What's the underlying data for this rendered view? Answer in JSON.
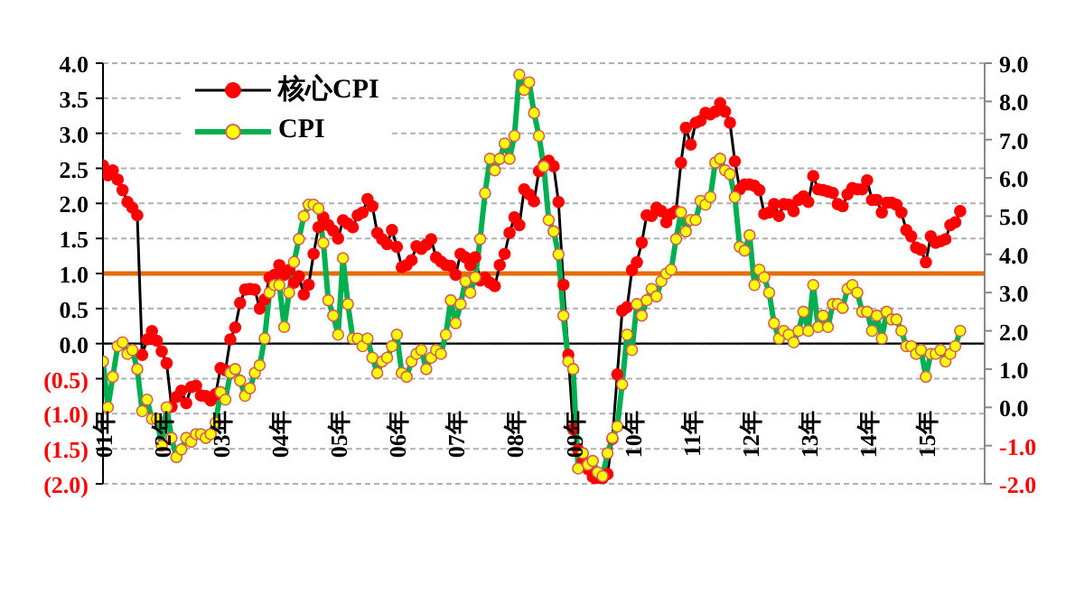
{
  "chart_data": {
    "type": "line",
    "x": [
      "2001-01",
      "2001-02",
      "2001-03",
      "2001-04",
      "2001-05",
      "2001-06",
      "2001-07",
      "2001-08",
      "2001-09",
      "2001-10",
      "2001-11",
      "2001-12",
      "2002-01",
      "2002-02",
      "2002-03",
      "2002-04",
      "2002-05",
      "2002-06",
      "2002-07",
      "2002-08",
      "2002-09",
      "2002-10",
      "2002-11",
      "2002-12",
      "2003-01",
      "2003-02",
      "2003-03",
      "2003-04",
      "2003-05",
      "2003-06",
      "2003-07",
      "2003-08",
      "2003-09",
      "2003-10",
      "2003-11",
      "2003-12",
      "2004-01",
      "2004-02",
      "2004-03",
      "2004-04",
      "2004-05",
      "2004-06",
      "2004-07",
      "2004-08",
      "2004-09",
      "2004-10",
      "2004-11",
      "2004-12",
      "2005-01",
      "2005-02",
      "2005-03",
      "2005-04",
      "2005-05",
      "2005-06",
      "2005-07",
      "2005-08",
      "2005-09",
      "2005-10",
      "2005-11",
      "2005-12",
      "2006-01",
      "2006-02",
      "2006-03",
      "2006-04",
      "2006-05",
      "2006-06",
      "2006-07",
      "2006-08",
      "2006-09",
      "2006-10",
      "2006-11",
      "2006-12",
      "2007-01",
      "2007-02",
      "2007-03",
      "2007-04",
      "2007-05",
      "2007-06",
      "2007-07",
      "2007-08",
      "2007-09",
      "2007-10",
      "2007-11",
      "2007-12",
      "2008-01",
      "2008-02",
      "2008-03",
      "2008-04",
      "2008-05",
      "2008-06",
      "2008-07",
      "2008-08",
      "2008-09",
      "2008-10",
      "2008-11",
      "2008-12",
      "2009-01",
      "2009-02",
      "2009-03",
      "2009-04",
      "2009-05",
      "2009-06",
      "2009-07",
      "2009-08",
      "2009-09",
      "2009-10",
      "2009-11",
      "2009-12",
      "2010-01",
      "2010-02",
      "2010-03",
      "2010-04",
      "2010-05",
      "2010-06",
      "2010-07",
      "2010-08",
      "2010-09",
      "2010-10",
      "2010-11",
      "2010-12",
      "2011-01",
      "2011-02",
      "2011-03",
      "2011-04",
      "2011-05",
      "2011-06",
      "2011-07",
      "2011-08",
      "2011-09",
      "2011-10",
      "2011-11",
      "2011-12",
      "2012-01",
      "2012-02",
      "2012-03",
      "2012-04",
      "2012-05",
      "2012-06",
      "2012-07",
      "2012-08",
      "2012-09",
      "2012-10",
      "2012-11",
      "2012-12",
      "2013-01",
      "2013-02",
      "2013-03",
      "2013-04",
      "2013-05",
      "2013-06",
      "2013-07",
      "2013-08",
      "2013-09",
      "2013-10",
      "2013-11",
      "2013-12",
      "2014-01",
      "2014-02",
      "2014-03",
      "2014-04",
      "2014-05",
      "2014-06",
      "2014-07",
      "2014-08",
      "2014-09",
      "2014-10",
      "2014-11",
      "2014-12",
      "2015-01",
      "2015-02",
      "2015-03",
      "2015-04",
      "2015-05",
      "2015-06",
      "2015-07",
      "2015-08"
    ],
    "series": [
      {
        "name": "核心CPI",
        "color": "#ff0000",
        "values": [
          2.54,
          2.4,
          2.47,
          2.34,
          2.19,
          2.02,
          1.94,
          1.83,
          -0.16,
          0.06,
          0.18,
          0.04,
          -0.11,
          -0.28,
          -0.9,
          -0.76,
          -0.67,
          -0.85,
          -0.62,
          -0.6,
          -0.74,
          -0.75,
          -0.81,
          -0.72,
          -0.35,
          -0.38,
          0.06,
          0.23,
          0.58,
          0.77,
          0.78,
          0.77,
          0.5,
          0.63,
          0.94,
          0.98,
          1.12,
          0.98,
          1.05,
          0.87,
          0.96,
          0.7,
          0.84,
          1.28,
          1.66,
          1.8,
          1.69,
          1.61,
          1.5,
          1.76,
          1.71,
          1.66,
          1.83,
          1.87,
          2.06,
          1.96,
          1.58,
          1.49,
          1.42,
          1.62,
          1.38,
          1.09,
          1.12,
          1.19,
          1.39,
          1.35,
          1.41,
          1.49,
          1.23,
          1.17,
          1.12,
          1.11,
          0.98,
          1.28,
          1.23,
          1.12,
          1.23,
          0.9,
          0.94,
          0.87,
          0.82,
          1.12,
          1.28,
          1.58,
          1.8,
          1.69,
          2.2,
          2.13,
          2.03,
          2.46,
          2.55,
          2.61,
          2.53,
          2.02,
          0.84,
          -0.16,
          -1.22,
          -1.51,
          -1.68,
          -1.79,
          -1.9,
          -1.98,
          -1.92,
          -1.86,
          -1.36,
          -0.44,
          0.47,
          0.52,
          1.05,
          1.16,
          1.44,
          1.83,
          1.82,
          1.94,
          1.89,
          1.73,
          1.85,
          1.89,
          2.58,
          3.08,
          2.84,
          3.15,
          3.18,
          3.29,
          3.27,
          3.31,
          3.43,
          3.31,
          3.15,
          2.6,
          2.2,
          2.27,
          2.27,
          2.25,
          2.19,
          1.85,
          1.87,
          1.99,
          1.82,
          1.99,
          1.98,
          1.89,
          2.05,
          2.1,
          2.02,
          2.39,
          2.2,
          2.19,
          2.17,
          2.15,
          1.99,
          1.96,
          2.13,
          2.22,
          2.2,
          2.2,
          2.33,
          2.05,
          2.05,
          1.87,
          2.01,
          2.01,
          1.98,
          1.87,
          1.62,
          1.53,
          1.37,
          1.34,
          1.16,
          1.53,
          1.44,
          1.46,
          1.49,
          1.69,
          1.73,
          1.89
        ]
      },
      {
        "name": "CPI",
        "color": "#00b050",
        "axis": "y2",
        "values": [
          1.2,
          0.0,
          0.8,
          1.6,
          1.7,
          1.4,
          1.5,
          1.0,
          -0.1,
          0.2,
          -0.3,
          -0.3,
          -1.0,
          0.0,
          -0.8,
          -1.3,
          -1.1,
          -0.8,
          -0.9,
          -0.7,
          -0.7,
          -0.8,
          -0.7,
          -0.4,
          0.4,
          0.2,
          0.9,
          1.0,
          0.7,
          0.3,
          0.5,
          0.9,
          1.1,
          1.8,
          3.0,
          3.2,
          3.2,
          2.1,
          3.0,
          3.8,
          4.4,
          5.0,
          5.3,
          5.3,
          5.2,
          4.3,
          2.8,
          2.4,
          1.9,
          3.9,
          2.7,
          1.8,
          1.8,
          1.6,
          1.8,
          1.3,
          0.9,
          1.2,
          1.3,
          1.6,
          1.9,
          0.9,
          0.8,
          1.2,
          1.4,
          1.5,
          1.0,
          1.3,
          1.5,
          1.4,
          1.9,
          2.8,
          2.2,
          2.7,
          3.3,
          3.0,
          3.4,
          4.4,
          5.6,
          6.5,
          6.2,
          6.5,
          6.9,
          6.5,
          7.1,
          8.7,
          8.3,
          8.5,
          7.7,
          7.1,
          6.3,
          4.9,
          4.6,
          4.0,
          2.4,
          1.2,
          1.0,
          -1.6,
          -1.2,
          -1.5,
          -1.4,
          -1.7,
          -1.8,
          -1.2,
          -0.8,
          -0.5,
          0.6,
          1.9,
          1.5,
          2.7,
          2.4,
          2.8,
          3.1,
          2.9,
          3.3,
          3.5,
          3.6,
          4.4,
          5.1,
          4.6,
          4.9,
          4.9,
          5.4,
          5.3,
          5.5,
          6.4,
          6.5,
          6.2,
          6.1,
          5.5,
          4.2,
          4.1,
          4.5,
          3.2,
          3.6,
          3.4,
          3.0,
          2.2,
          1.8,
          2.0,
          1.9,
          1.7,
          2.0,
          2.5,
          2.0,
          3.2,
          2.1,
          2.4,
          2.1,
          2.7,
          2.7,
          2.6,
          3.1,
          3.2,
          3.0,
          2.5,
          2.5,
          2.0,
          2.4,
          1.8,
          2.5,
          2.3,
          2.3,
          2.0,
          1.6,
          1.6,
          1.4,
          1.5,
          0.8,
          1.4,
          1.4,
          1.5,
          1.2,
          1.4,
          1.6,
          2.0
        ]
      }
    ],
    "xlim": [
      "2001-01",
      "2016-01"
    ],
    "xticks": [
      {
        "value": "2001-01",
        "label": "01年"
      },
      {
        "value": "2002-01",
        "label": "02年"
      },
      {
        "value": "2003-01",
        "label": "03年"
      },
      {
        "value": "2004-01",
        "label": "04年"
      },
      {
        "value": "2005-01",
        "label": "05年"
      },
      {
        "value": "2006-01",
        "label": "06年"
      },
      {
        "value": "2007-01",
        "label": "07年"
      },
      {
        "value": "2008-01",
        "label": "08年"
      },
      {
        "value": "2009-01",
        "label": "09年"
      },
      {
        "value": "2010-01",
        "label": "10年"
      },
      {
        "value": "2011-01",
        "label": "11年"
      },
      {
        "value": "2012-01",
        "label": "12年"
      },
      {
        "value": "2013-01",
        "label": "13年"
      },
      {
        "value": "2014-01",
        "label": "14年"
      },
      {
        "value": "2015-01",
        "label": "15年"
      }
    ],
    "ylim": [
      -2,
      4
    ],
    "yticks": [
      {
        "value": 4,
        "label": "4.0"
      },
      {
        "value": 3.5,
        "label": "3.5"
      },
      {
        "value": 3,
        "label": "3.0"
      },
      {
        "value": 2.5,
        "label": "2.5"
      },
      {
        "value": 2,
        "label": "2.0"
      },
      {
        "value": 1.5,
        "label": "1.5"
      },
      {
        "value": 1,
        "label": "1.0"
      },
      {
        "value": 0.5,
        "label": "0.5"
      },
      {
        "value": 0,
        "label": "0.0"
      },
      {
        "value": -0.5,
        "label": "(0.5)"
      },
      {
        "value": -1,
        "label": "(1.0)"
      },
      {
        "value": -1.5,
        "label": "(1.5)"
      },
      {
        "value": -2,
        "label": "(2.0)"
      }
    ],
    "y2lim": [
      -2,
      9
    ],
    "y2ticks": [
      {
        "value": 9,
        "label": "9.0"
      },
      {
        "value": 8,
        "label": "8.0"
      },
      {
        "value": 7,
        "label": "7.0"
      },
      {
        "value": 6,
        "label": "6.0"
      },
      {
        "value": 5,
        "label": "5.0"
      },
      {
        "value": 4,
        "label": "4.0"
      },
      {
        "value": 3,
        "label": "3.0"
      },
      {
        "value": 2,
        "label": "2.0"
      },
      {
        "value": 1,
        "label": "1.0"
      },
      {
        "value": 0,
        "label": "0.0"
      },
      {
        "value": -1,
        "label": "-1.0"
      },
      {
        "value": -2,
        "label": "-2.0"
      }
    ],
    "ref_lines": [
      {
        "axis": "y",
        "value": 1,
        "color": "#e46c0a"
      },
      {
        "axis": "y",
        "value": 0,
        "color": "#000000"
      }
    ],
    "grid": "y",
    "legend": "top left",
    "marker": "circle"
  }
}
